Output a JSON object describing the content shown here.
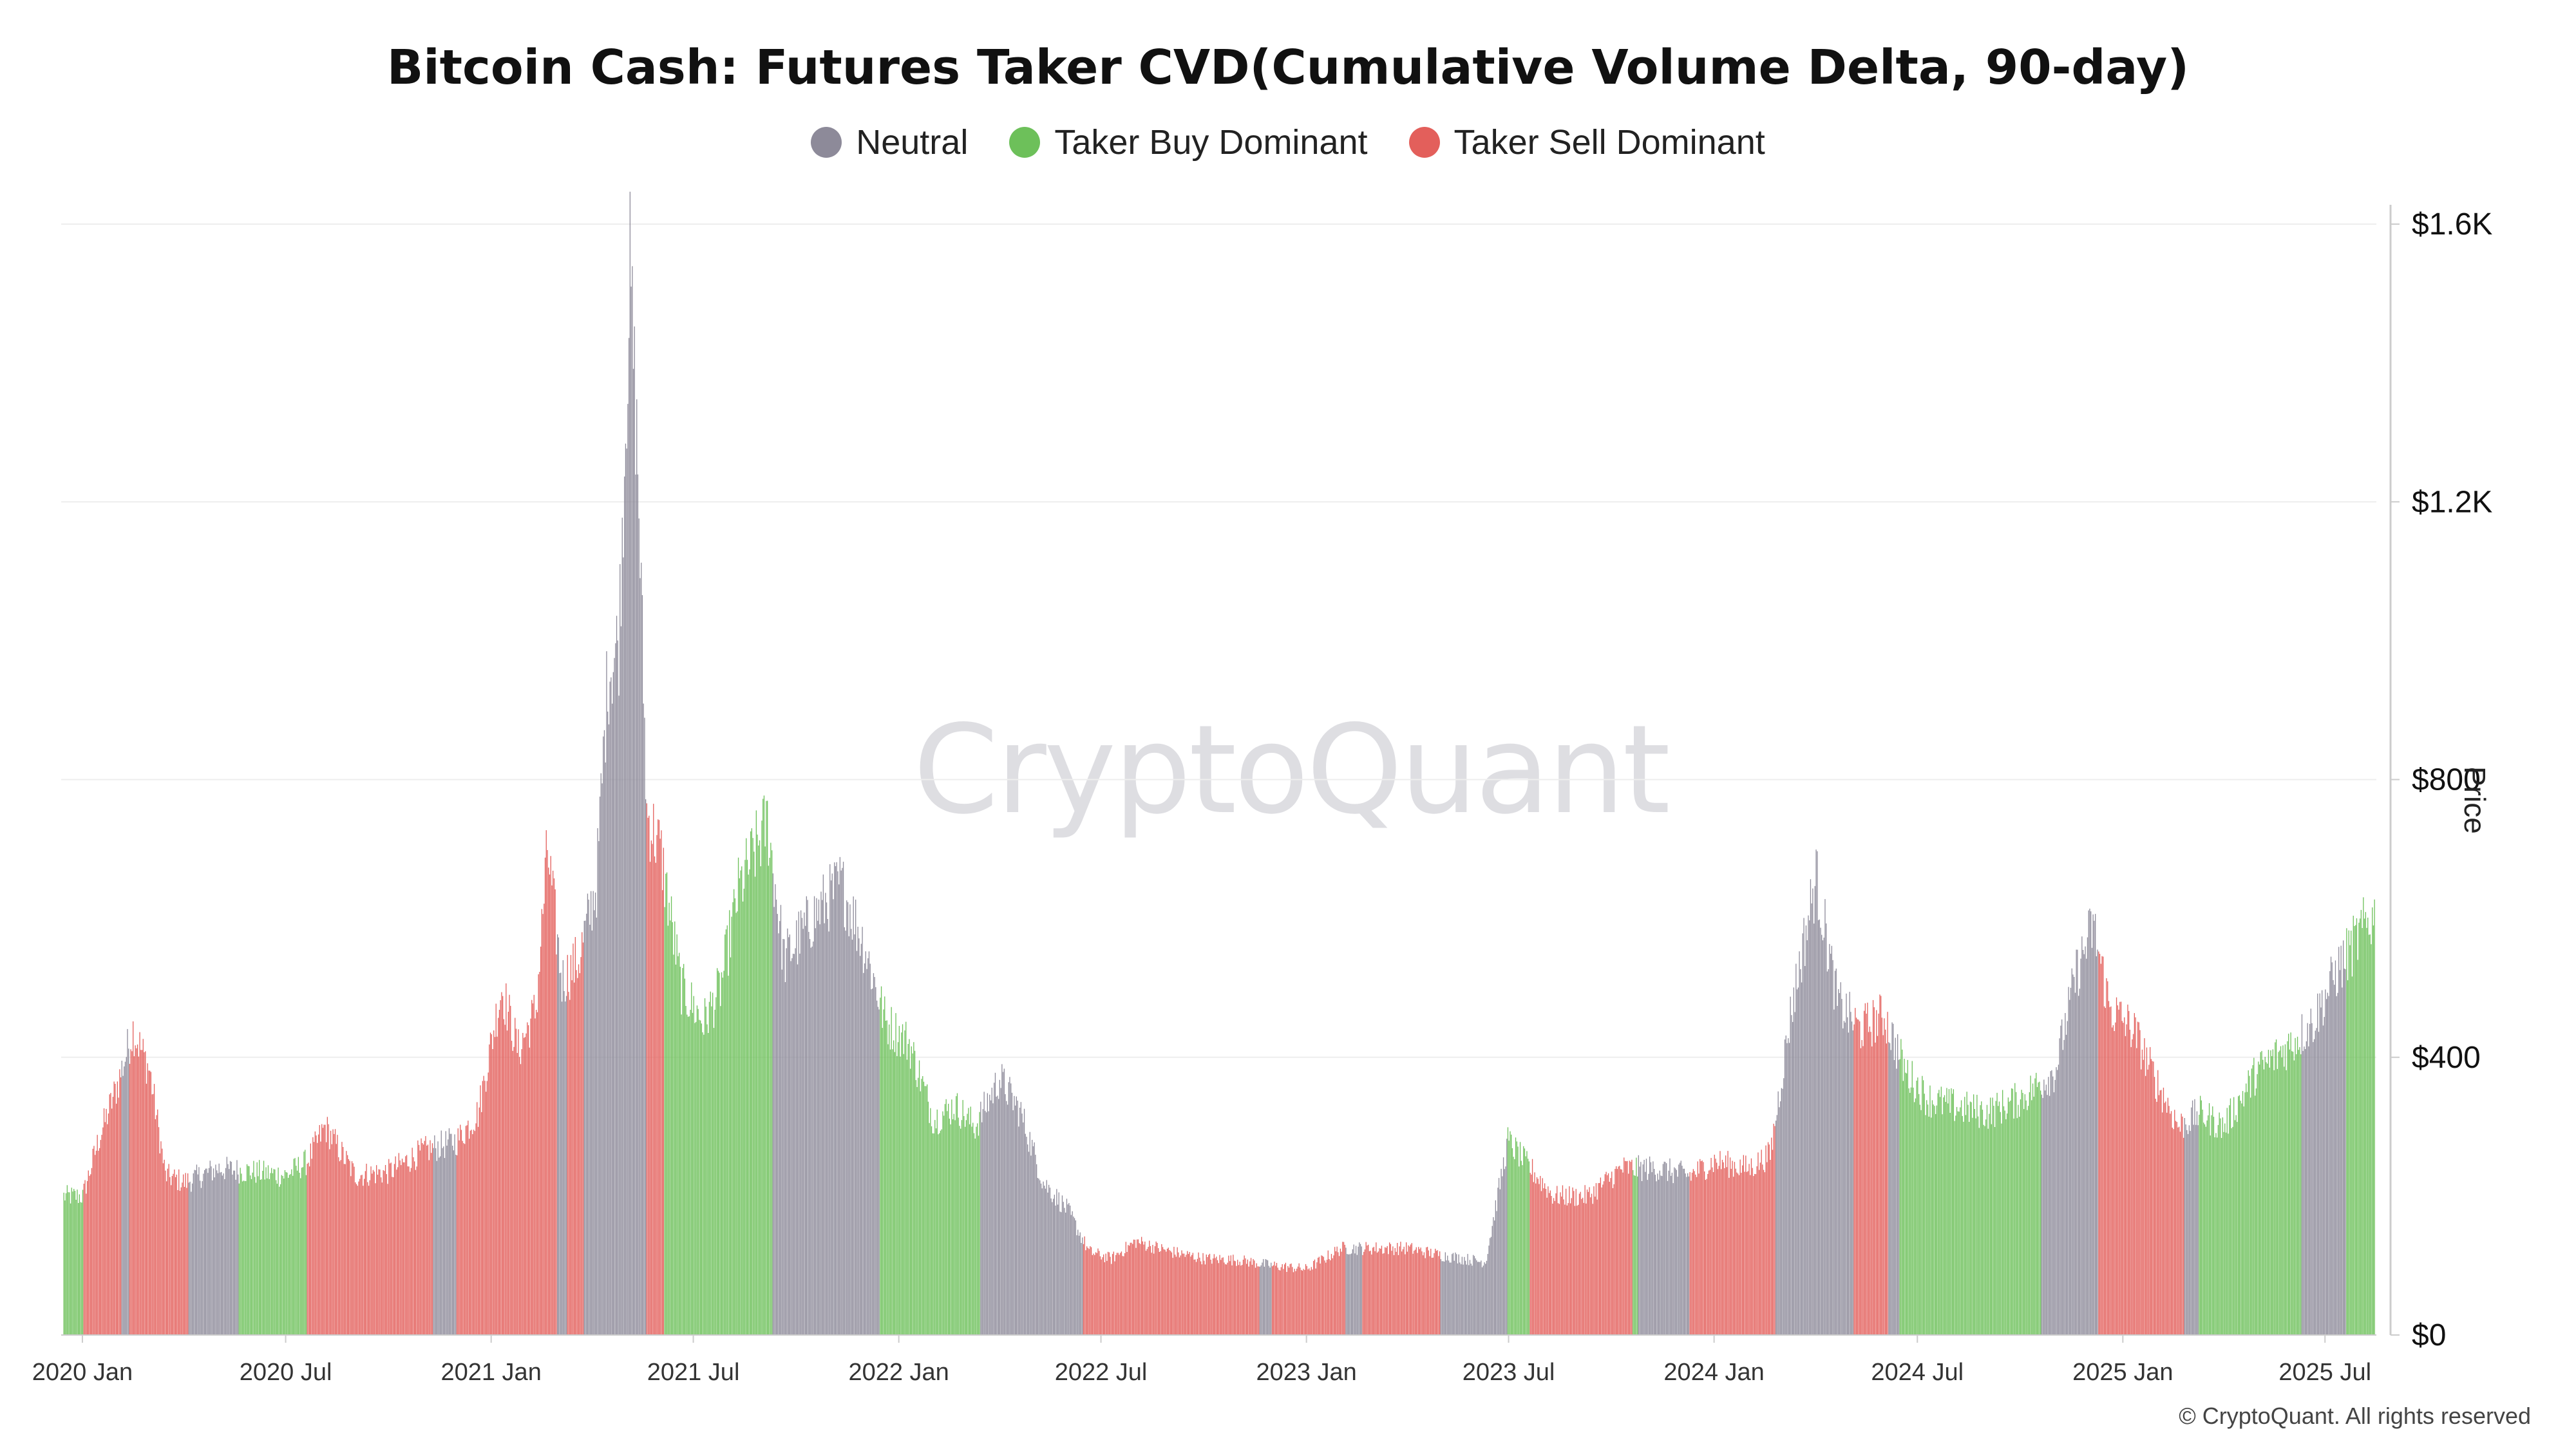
{
  "title": "Bitcoin Cash: Futures Taker CVD(Cumulative Volume Delta, 90-day)",
  "legend": [
    {
      "label": "Neutral",
      "color": "#8d8a99"
    },
    {
      "label": "Taker Buy Dominant",
      "color": "#6dc05a"
    },
    {
      "label": "Taker Sell Dominant",
      "color": "#e35f5b"
    }
  ],
  "watermark": "CryptoQuant",
  "copyright": "© CryptoQuant. All rights reserved",
  "chart_data": {
    "type": "bar",
    "title": "Bitcoin Cash: Futures Taker CVD(Cumulative Volume Delta, 90-day)",
    "ylabel": "Price",
    "ylim": [
      0,
      1600
    ],
    "y_ticks": [
      "$0",
      "$400",
      "$800",
      "$1.2K",
      "$1.6K"
    ],
    "y_tick_values": [
      0,
      400,
      800,
      1200,
      1600
    ],
    "x_ticks": [
      "2020 Jan",
      "2020 Jul",
      "2021 Jan",
      "2021 Jul",
      "2022 Jan",
      "2022 Jul",
      "2023 Jan",
      "2023 Jul",
      "2024 Jan",
      "2024 Jul",
      "2025 Jan",
      "2025 Jul"
    ],
    "x_tick_dates": [
      "2020-01-01",
      "2020-07-01",
      "2021-01-01",
      "2021-07-01",
      "2022-01-01",
      "2022-07-01",
      "2023-01-01",
      "2023-07-01",
      "2024-01-01",
      "2024-07-01",
      "2025-01-01",
      "2025-07-01"
    ],
    "x_range": [
      "2019-12-13",
      "2025-08-16"
    ],
    "grid": true,
    "legend_position": "top-center",
    "y_axis_position": "right",
    "series": [
      {
        "name": "Neutral",
        "color": "#8d8a99"
      },
      {
        "name": "Taker Buy Dominant",
        "color": "#6dc05a"
      },
      {
        "name": "Taker Sell Dominant",
        "color": "#e35f5b"
      }
    ],
    "price_points": [
      [
        "2020-01-01",
        200
      ],
      [
        "2020-01-15",
        280
      ],
      [
        "2020-02-01",
        360
      ],
      [
        "2020-02-15",
        440
      ],
      [
        "2020-03-01",
        380
      ],
      [
        "2020-03-15",
        230
      ],
      [
        "2020-04-01",
        220
      ],
      [
        "2020-05-01",
        240
      ],
      [
        "2020-06-01",
        235
      ],
      [
        "2020-07-01",
        230
      ],
      [
        "2020-07-20",
        250
      ],
      [
        "2020-08-05",
        300
      ],
      [
        "2020-09-01",
        230
      ],
      [
        "2020-10-01",
        235
      ],
      [
        "2020-11-01",
        265
      ],
      [
        "2020-12-01",
        280
      ],
      [
        "2020-12-20",
        320
      ],
      [
        "2021-01-10",
        500
      ],
      [
        "2021-01-25",
        410
      ],
      [
        "2021-02-10",
        470
      ],
      [
        "2021-02-20",
        700
      ],
      [
        "2021-03-05",
        510
      ],
      [
        "2021-03-20",
        540
      ],
      [
        "2021-04-05",
        650
      ],
      [
        "2021-04-15",
        950
      ],
      [
        "2021-04-25",
        1000
      ],
      [
        "2021-05-05",
        1530
      ],
      [
        "2021-05-12",
        1250
      ],
      [
        "2021-05-20",
        750
      ],
      [
        "2021-06-01",
        700
      ],
      [
        "2021-06-20",
        500
      ],
      [
        "2021-07-10",
        450
      ],
      [
        "2021-07-25",
        500
      ],
      [
        "2021-08-10",
        640
      ],
      [
        "2021-09-05",
        740
      ],
      [
        "2021-09-20",
        540
      ],
      [
        "2021-10-15",
        600
      ],
      [
        "2021-11-10",
        650
      ],
      [
        "2021-12-01",
        560
      ],
      [
        "2021-12-20",
        450
      ],
      [
        "2022-01-10",
        420
      ],
      [
        "2022-02-01",
        310
      ],
      [
        "2022-02-20",
        330
      ],
      [
        "2022-03-10",
        300
      ],
      [
        "2022-04-01",
        370
      ],
      [
        "2022-04-20",
        320
      ],
      [
        "2022-05-10",
        220
      ],
      [
        "2022-06-01",
        180
      ],
      [
        "2022-06-20",
        120
      ],
      [
        "2022-07-10",
        110
      ],
      [
        "2022-08-01",
        135
      ],
      [
        "2022-09-01",
        120
      ],
      [
        "2022-10-01",
        110
      ],
      [
        "2022-11-01",
        108
      ],
      [
        "2022-12-01",
        100
      ],
      [
        "2023-01-01",
        95
      ],
      [
        "2023-02-01",
        125
      ],
      [
        "2023-03-01",
        125
      ],
      [
        "2023-04-01",
        125
      ],
      [
        "2023-05-01",
        115
      ],
      [
        "2023-06-10",
        105
      ],
      [
        "2023-06-30",
        280
      ],
      [
        "2023-07-15",
        250
      ],
      [
        "2023-08-10",
        200
      ],
      [
        "2023-09-10",
        200
      ],
      [
        "2023-10-10",
        240
      ],
      [
        "2023-11-10",
        240
      ],
      [
        "2023-12-10",
        230
      ],
      [
        "2024-01-01",
        250
      ],
      [
        "2024-02-01",
        240
      ],
      [
        "2024-02-20",
        260
      ],
      [
        "2024-03-10",
        470
      ],
      [
        "2024-04-01",
        660
      ],
      [
        "2024-04-20",
        480
      ],
      [
        "2024-05-10",
        440
      ],
      [
        "2024-06-01",
        460
      ],
      [
        "2024-06-20",
        380
      ],
      [
        "2024-07-10",
        340
      ],
      [
        "2024-08-01",
        330
      ],
      [
        "2024-09-01",
        320
      ],
      [
        "2024-10-01",
        340
      ],
      [
        "2024-11-01",
        380
      ],
      [
        "2024-11-20",
        520
      ],
      [
        "2024-12-05",
        590
      ],
      [
        "2024-12-20",
        470
      ],
      [
        "2025-01-10",
        440
      ],
      [
        "2025-02-01",
        360
      ],
      [
        "2025-02-20",
        300
      ],
      [
        "2025-03-10",
        320
      ],
      [
        "2025-04-01",
        300
      ],
      [
        "2025-05-01",
        380
      ],
      [
        "2025-06-01",
        420
      ],
      [
        "2025-06-20",
        450
      ],
      [
        "2025-07-10",
        520
      ],
      [
        "2025-08-10",
        600
      ]
    ],
    "regimes": [
      [
        "2019-12-15",
        "2020-01-02",
        "Taker Buy Dominant"
      ],
      [
        "2020-01-02",
        "2020-02-05",
        "Taker Sell Dominant"
      ],
      [
        "2020-02-05",
        "2020-02-12",
        "Neutral"
      ],
      [
        "2020-02-12",
        "2020-04-05",
        "Taker Sell Dominant"
      ],
      [
        "2020-04-05",
        "2020-05-20",
        "Neutral"
      ],
      [
        "2020-05-20",
        "2020-07-20",
        "Taker Buy Dominant"
      ],
      [
        "2020-07-20",
        "2020-11-10",
        "Taker Sell Dominant"
      ],
      [
        "2020-11-10",
        "2020-12-01",
        "Neutral"
      ],
      [
        "2020-12-01",
        "2021-03-01",
        "Taker Sell Dominant"
      ],
      [
        "2021-03-01",
        "2021-03-10",
        "Neutral"
      ],
      [
        "2021-03-10",
        "2021-03-25",
        "Taker Sell Dominant"
      ],
      [
        "2021-03-25",
        "2021-05-20",
        "Neutral"
      ],
      [
        "2021-05-20",
        "2021-06-05",
        "Taker Sell Dominant"
      ],
      [
        "2021-06-05",
        "2021-09-10",
        "Taker Buy Dominant"
      ],
      [
        "2021-09-10",
        "2021-12-15",
        "Neutral"
      ],
      [
        "2021-12-15",
        "2022-03-15",
        "Taker Buy Dominant"
      ],
      [
        "2022-03-15",
        "2022-06-15",
        "Neutral"
      ],
      [
        "2022-06-15",
        "2022-11-20",
        "Taker Sell Dominant"
      ],
      [
        "2022-11-20",
        "2022-12-01",
        "Neutral"
      ],
      [
        "2022-12-01",
        "2023-02-05",
        "Taker Sell Dominant"
      ],
      [
        "2023-02-05",
        "2023-02-20",
        "Neutral"
      ],
      [
        "2023-02-20",
        "2023-05-01",
        "Taker Sell Dominant"
      ],
      [
        "2023-05-01",
        "2023-06-30",
        "Neutral"
      ],
      [
        "2023-06-30",
        "2023-07-20",
        "Taker Buy Dominant"
      ],
      [
        "2023-07-20",
        "2023-10-20",
        "Taker Sell Dominant"
      ],
      [
        "2023-10-20",
        "2023-10-25",
        "Taker Buy Dominant"
      ],
      [
        "2023-10-25",
        "2023-12-10",
        "Neutral"
      ],
      [
        "2023-12-10",
        "2024-02-25",
        "Taker Sell Dominant"
      ],
      [
        "2024-02-25",
        "2024-05-05",
        "Neutral"
      ],
      [
        "2024-05-05",
        "2024-06-05",
        "Taker Sell Dominant"
      ],
      [
        "2024-06-05",
        "2024-06-15",
        "Neutral"
      ],
      [
        "2024-06-15",
        "2024-10-20",
        "Taker Buy Dominant"
      ],
      [
        "2024-10-20",
        "2024-12-10",
        "Neutral"
      ],
      [
        "2024-12-10",
        "2025-02-25",
        "Taker Sell Dominant"
      ],
      [
        "2025-02-25",
        "2025-03-10",
        "Neutral"
      ],
      [
        "2025-03-10",
        "2025-06-10",
        "Taker Buy Dominant"
      ],
      [
        "2025-06-10",
        "2025-07-20",
        "Neutral"
      ],
      [
        "2025-07-20",
        "2025-08-15",
        "Taker Buy Dominant"
      ]
    ]
  }
}
